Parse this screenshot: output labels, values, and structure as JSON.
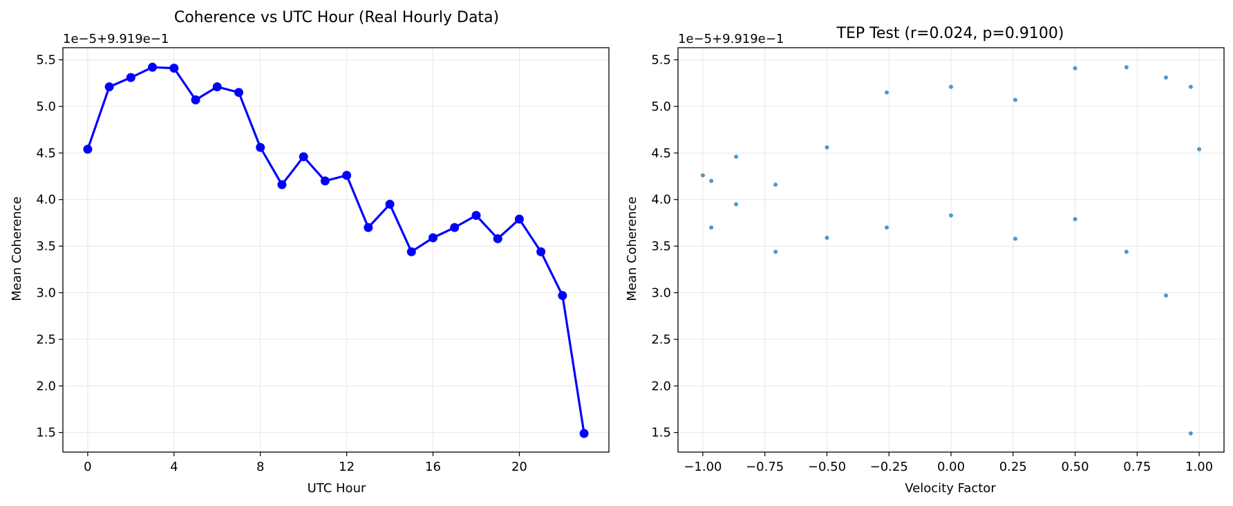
{
  "chart_data": [
    {
      "type": "line",
      "title": "Coherence vs UTC Hour (Real Hourly Data)",
      "xlabel": "UTC Hour",
      "ylabel": "Mean Coherence",
      "offset_label": "1e−5+9.919e−1",
      "xlim": [
        -1.15,
        24.15
      ],
      "ylim": [
        1.29,
        5.63
      ],
      "x_ticks": [
        0,
        4,
        8,
        12,
        16,
        20
      ],
      "x_tick_labels": [
        "0",
        "4",
        "8",
        "12",
        "16",
        "20"
      ],
      "y_ticks": [
        1.5,
        2.0,
        2.5,
        3.0,
        3.5,
        4.0,
        4.5,
        5.0,
        5.5
      ],
      "y_tick_labels": [
        "1.5",
        "2.0",
        "2.5",
        "3.0",
        "3.5",
        "4.0",
        "4.5",
        "5.0",
        "5.5"
      ],
      "grid": true,
      "color": "#0000ff",
      "x": [
        0,
        1,
        2,
        3,
        4,
        5,
        6,
        7,
        8,
        9,
        10,
        11,
        12,
        13,
        14,
        15,
        16,
        17,
        18,
        19,
        20,
        21,
        22,
        23
      ],
      "y": [
        4.54,
        5.21,
        5.31,
        5.42,
        5.41,
        5.07,
        5.21,
        5.15,
        4.56,
        4.16,
        4.46,
        4.2,
        4.26,
        3.7,
        3.95,
        3.44,
        3.59,
        3.7,
        3.83,
        3.58,
        3.79,
        3.44,
        2.97,
        1.49
      ]
    },
    {
      "type": "scatter",
      "title": "TEP Test (r=0.024, p=0.9100)",
      "xlabel": "Velocity Factor",
      "ylabel": "Mean Coherence",
      "offset_label": "1e−5+9.919e−1",
      "xlim": [
        -1.1,
        1.1
      ],
      "ylim": [
        1.29,
        5.63
      ],
      "x_ticks": [
        -1.0,
        -0.75,
        -0.5,
        -0.25,
        0.0,
        0.25,
        0.5,
        0.75,
        1.0
      ],
      "x_tick_labels": [
        "−1.00",
        "−0.75",
        "−0.50",
        "−0.25",
        "0.00",
        "0.25",
        "0.50",
        "0.75",
        "1.00"
      ],
      "y_ticks": [
        1.5,
        2.0,
        2.5,
        3.0,
        3.5,
        4.0,
        4.5,
        5.0,
        5.5
      ],
      "y_tick_labels": [
        "1.5",
        "2.0",
        "2.5",
        "3.0",
        "3.5",
        "4.0",
        "4.5",
        "5.0",
        "5.5"
      ],
      "grid": true,
      "color": "#3c8dc4",
      "x": [
        1.0,
        0.966,
        0.866,
        0.707,
        0.5,
        0.259,
        0.0,
        -0.259,
        -0.5,
        -0.707,
        -0.866,
        -0.966,
        -1.0,
        -0.966,
        -0.866,
        -0.707,
        -0.5,
        -0.259,
        0.0,
        0.259,
        0.5,
        0.707,
        0.866,
        0.966
      ],
      "y": [
        4.54,
        5.21,
        5.31,
        5.42,
        5.41,
        5.07,
        5.21,
        5.15,
        4.56,
        4.16,
        4.46,
        4.2,
        4.26,
        3.7,
        3.95,
        3.44,
        3.59,
        3.7,
        3.83,
        3.58,
        3.79,
        3.44,
        2.97,
        1.49
      ]
    }
  ]
}
